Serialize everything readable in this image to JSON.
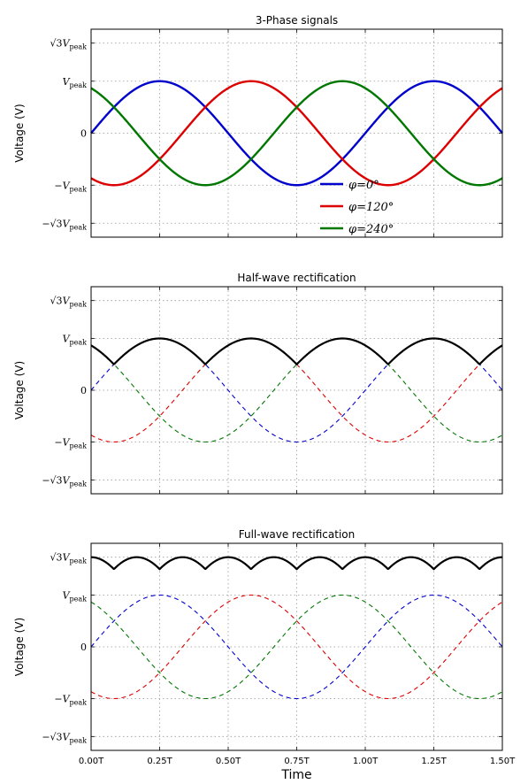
{
  "chart_data": [
    {
      "type": "line",
      "title": "3-Phase signals",
      "ylabel": "Voltage (V)",
      "xlabel": "",
      "x_range": [
        0.0,
        1.5
      ],
      "x_unit": "T",
      "ylim": [
        -2.0,
        2.0
      ],
      "grid": true,
      "legend_position": "lower-center",
      "yticks": [
        {
          "value": 1.7320508,
          "main": "√3",
          "base": "V",
          "sub": "peak"
        },
        {
          "value": 1.0,
          "main": "",
          "base": "V",
          "sub": "peak"
        },
        {
          "value": 0.0,
          "main": "0",
          "base": "",
          "sub": ""
        },
        {
          "value": -1.0,
          "main": "−",
          "base": "V",
          "sub": "peak"
        },
        {
          "value": -1.7320508,
          "main": "−√3",
          "base": "V",
          "sub": "peak"
        }
      ],
      "xticks": [],
      "series": [
        {
          "name": "φ=0°",
          "phase_deg": 0,
          "amplitude": 1.0,
          "color": "#0000cc",
          "style": "solid"
        },
        {
          "name": "φ=120°",
          "phase_deg": 120,
          "amplitude": 1.0,
          "color": "#dd0000",
          "style": "solid"
        },
        {
          "name": "φ=240°",
          "phase_deg": 240,
          "amplitude": 1.0,
          "color": "#007700",
          "style": "solid"
        }
      ]
    },
    {
      "type": "line",
      "title": "Half-wave rectification",
      "ylabel": "Voltage (V)",
      "xlabel": "",
      "x_range": [
        0.0,
        1.5
      ],
      "x_unit": "T",
      "ylim": [
        -2.0,
        2.0
      ],
      "grid": true,
      "yticks": [
        {
          "value": 1.7320508,
          "main": "√3",
          "base": "V",
          "sub": "peak"
        },
        {
          "value": 1.0,
          "main": "",
          "base": "V",
          "sub": "peak"
        },
        {
          "value": 0.0,
          "main": "0",
          "base": "",
          "sub": ""
        },
        {
          "value": -1.0,
          "main": "−",
          "base": "V",
          "sub": "peak"
        },
        {
          "value": -1.7320508,
          "main": "−√3",
          "base": "V",
          "sub": "peak"
        }
      ],
      "xticks": [],
      "series": [
        {
          "phase_deg": 0,
          "amplitude": 1.0,
          "color": "#0000cc",
          "style": "dashed"
        },
        {
          "phase_deg": 120,
          "amplitude": 1.0,
          "color": "#dd0000",
          "style": "dashed"
        },
        {
          "phase_deg": 240,
          "amplitude": 1.0,
          "color": "#007700",
          "style": "dashed"
        },
        {
          "function": "max of three phases",
          "color": "#000000",
          "style": "solid"
        }
      ]
    },
    {
      "type": "line",
      "title": "Full-wave rectification",
      "ylabel": "Voltage (V)",
      "xlabel": "Time",
      "x_range": [
        0.0,
        1.5
      ],
      "x_unit": "T",
      "ylim": [
        -2.0,
        2.0
      ],
      "grid": true,
      "yticks": [
        {
          "value": 1.7320508,
          "main": "√3",
          "base": "V",
          "sub": "peak"
        },
        {
          "value": 1.0,
          "main": "",
          "base": "V",
          "sub": "peak"
        },
        {
          "value": 0.0,
          "main": "0",
          "base": "",
          "sub": ""
        },
        {
          "value": -1.0,
          "main": "−",
          "base": "V",
          "sub": "peak"
        },
        {
          "value": -1.7320508,
          "main": "−√3",
          "base": "V",
          "sub": "peak"
        }
      ],
      "xticks": [
        "0.00T",
        "0.25T",
        "0.50T",
        "0.75T",
        "1.00T",
        "1.25T",
        "1.50T"
      ],
      "series": [
        {
          "phase_deg": 0,
          "amplitude": 1.0,
          "color": "#0000cc",
          "style": "dashed"
        },
        {
          "phase_deg": 120,
          "amplitude": 1.0,
          "color": "#dd0000",
          "style": "dashed"
        },
        {
          "phase_deg": 240,
          "amplitude": 1.0,
          "color": "#007700",
          "style": "dashed"
        },
        {
          "function": "max minus min of three phases",
          "color": "#000000",
          "style": "solid"
        }
      ]
    }
  ]
}
